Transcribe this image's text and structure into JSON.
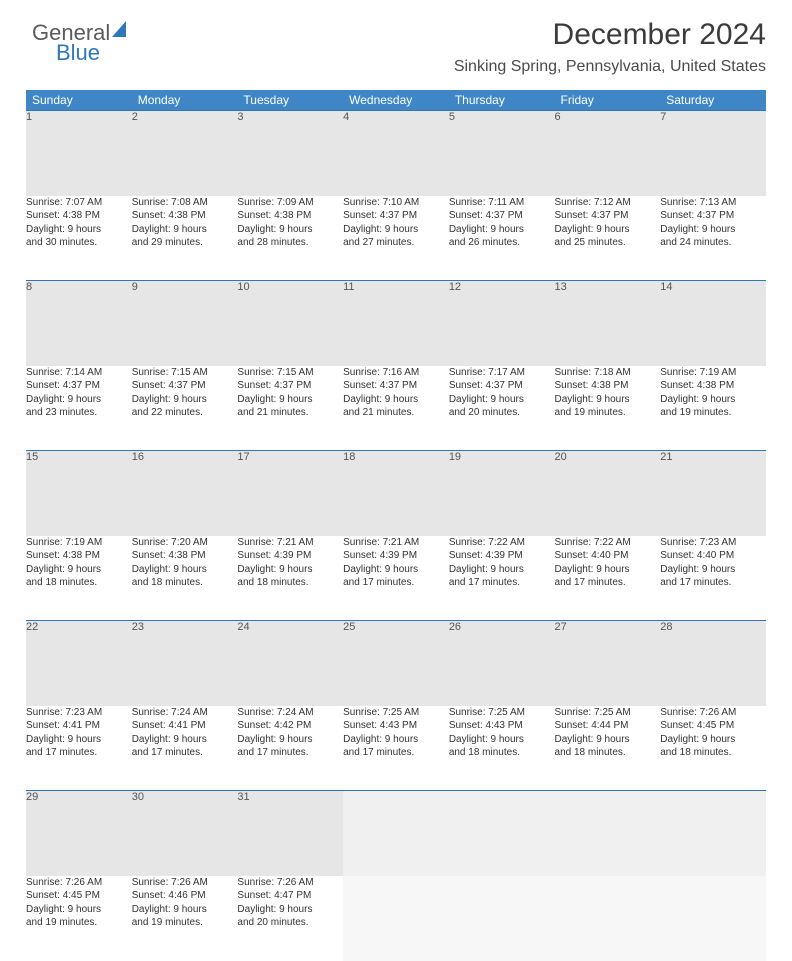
{
  "brand": {
    "part1": "General",
    "part2": "Blue"
  },
  "title": "December 2024",
  "location": "Sinking Spring, Pennsylvania, United States",
  "colors": {
    "header_bg": "#3e86c6",
    "accent_border": "#2f77bb",
    "daynum_bg": "#e6e6e6",
    "text": "#333333"
  },
  "weekdays": [
    "Sunday",
    "Monday",
    "Tuesday",
    "Wednesday",
    "Thursday",
    "Friday",
    "Saturday"
  ],
  "weeks": [
    [
      {
        "n": "1",
        "sr": "Sunrise: 7:07 AM",
        "ss": "Sunset: 4:38 PM",
        "d1": "Daylight: 9 hours",
        "d2": "and 30 minutes."
      },
      {
        "n": "2",
        "sr": "Sunrise: 7:08 AM",
        "ss": "Sunset: 4:38 PM",
        "d1": "Daylight: 9 hours",
        "d2": "and 29 minutes."
      },
      {
        "n": "3",
        "sr": "Sunrise: 7:09 AM",
        "ss": "Sunset: 4:38 PM",
        "d1": "Daylight: 9 hours",
        "d2": "and 28 minutes."
      },
      {
        "n": "4",
        "sr": "Sunrise: 7:10 AM",
        "ss": "Sunset: 4:37 PM",
        "d1": "Daylight: 9 hours",
        "d2": "and 27 minutes."
      },
      {
        "n": "5",
        "sr": "Sunrise: 7:11 AM",
        "ss": "Sunset: 4:37 PM",
        "d1": "Daylight: 9 hours",
        "d2": "and 26 minutes."
      },
      {
        "n": "6",
        "sr": "Sunrise: 7:12 AM",
        "ss": "Sunset: 4:37 PM",
        "d1": "Daylight: 9 hours",
        "d2": "and 25 minutes."
      },
      {
        "n": "7",
        "sr": "Sunrise: 7:13 AM",
        "ss": "Sunset: 4:37 PM",
        "d1": "Daylight: 9 hours",
        "d2": "and 24 minutes."
      }
    ],
    [
      {
        "n": "8",
        "sr": "Sunrise: 7:14 AM",
        "ss": "Sunset: 4:37 PM",
        "d1": "Daylight: 9 hours",
        "d2": "and 23 minutes."
      },
      {
        "n": "9",
        "sr": "Sunrise: 7:15 AM",
        "ss": "Sunset: 4:37 PM",
        "d1": "Daylight: 9 hours",
        "d2": "and 22 minutes."
      },
      {
        "n": "10",
        "sr": "Sunrise: 7:15 AM",
        "ss": "Sunset: 4:37 PM",
        "d1": "Daylight: 9 hours",
        "d2": "and 21 minutes."
      },
      {
        "n": "11",
        "sr": "Sunrise: 7:16 AM",
        "ss": "Sunset: 4:37 PM",
        "d1": "Daylight: 9 hours",
        "d2": "and 21 minutes."
      },
      {
        "n": "12",
        "sr": "Sunrise: 7:17 AM",
        "ss": "Sunset: 4:37 PM",
        "d1": "Daylight: 9 hours",
        "d2": "and 20 minutes."
      },
      {
        "n": "13",
        "sr": "Sunrise: 7:18 AM",
        "ss": "Sunset: 4:38 PM",
        "d1": "Daylight: 9 hours",
        "d2": "and 19 minutes."
      },
      {
        "n": "14",
        "sr": "Sunrise: 7:19 AM",
        "ss": "Sunset: 4:38 PM",
        "d1": "Daylight: 9 hours",
        "d2": "and 19 minutes."
      }
    ],
    [
      {
        "n": "15",
        "sr": "Sunrise: 7:19 AM",
        "ss": "Sunset: 4:38 PM",
        "d1": "Daylight: 9 hours",
        "d2": "and 18 minutes."
      },
      {
        "n": "16",
        "sr": "Sunrise: 7:20 AM",
        "ss": "Sunset: 4:38 PM",
        "d1": "Daylight: 9 hours",
        "d2": "and 18 minutes."
      },
      {
        "n": "17",
        "sr": "Sunrise: 7:21 AM",
        "ss": "Sunset: 4:39 PM",
        "d1": "Daylight: 9 hours",
        "d2": "and 18 minutes."
      },
      {
        "n": "18",
        "sr": "Sunrise: 7:21 AM",
        "ss": "Sunset: 4:39 PM",
        "d1": "Daylight: 9 hours",
        "d2": "and 17 minutes."
      },
      {
        "n": "19",
        "sr": "Sunrise: 7:22 AM",
        "ss": "Sunset: 4:39 PM",
        "d1": "Daylight: 9 hours",
        "d2": "and 17 minutes."
      },
      {
        "n": "20",
        "sr": "Sunrise: 7:22 AM",
        "ss": "Sunset: 4:40 PM",
        "d1": "Daylight: 9 hours",
        "d2": "and 17 minutes."
      },
      {
        "n": "21",
        "sr": "Sunrise: 7:23 AM",
        "ss": "Sunset: 4:40 PM",
        "d1": "Daylight: 9 hours",
        "d2": "and 17 minutes."
      }
    ],
    [
      {
        "n": "22",
        "sr": "Sunrise: 7:23 AM",
        "ss": "Sunset: 4:41 PM",
        "d1": "Daylight: 9 hours",
        "d2": "and 17 minutes."
      },
      {
        "n": "23",
        "sr": "Sunrise: 7:24 AM",
        "ss": "Sunset: 4:41 PM",
        "d1": "Daylight: 9 hours",
        "d2": "and 17 minutes."
      },
      {
        "n": "24",
        "sr": "Sunrise: 7:24 AM",
        "ss": "Sunset: 4:42 PM",
        "d1": "Daylight: 9 hours",
        "d2": "and 17 minutes."
      },
      {
        "n": "25",
        "sr": "Sunrise: 7:25 AM",
        "ss": "Sunset: 4:43 PM",
        "d1": "Daylight: 9 hours",
        "d2": "and 17 minutes."
      },
      {
        "n": "26",
        "sr": "Sunrise: 7:25 AM",
        "ss": "Sunset: 4:43 PM",
        "d1": "Daylight: 9 hours",
        "d2": "and 18 minutes."
      },
      {
        "n": "27",
        "sr": "Sunrise: 7:25 AM",
        "ss": "Sunset: 4:44 PM",
        "d1": "Daylight: 9 hours",
        "d2": "and 18 minutes."
      },
      {
        "n": "28",
        "sr": "Sunrise: 7:26 AM",
        "ss": "Sunset: 4:45 PM",
        "d1": "Daylight: 9 hours",
        "d2": "and 18 minutes."
      }
    ],
    [
      {
        "n": "29",
        "sr": "Sunrise: 7:26 AM",
        "ss": "Sunset: 4:45 PM",
        "d1": "Daylight: 9 hours",
        "d2": "and 19 minutes."
      },
      {
        "n": "30",
        "sr": "Sunrise: 7:26 AM",
        "ss": "Sunset: 4:46 PM",
        "d1": "Daylight: 9 hours",
        "d2": "and 19 minutes."
      },
      {
        "n": "31",
        "sr": "Sunrise: 7:26 AM",
        "ss": "Sunset: 4:47 PM",
        "d1": "Daylight: 9 hours",
        "d2": "and 20 minutes."
      },
      null,
      null,
      null,
      null
    ]
  ]
}
